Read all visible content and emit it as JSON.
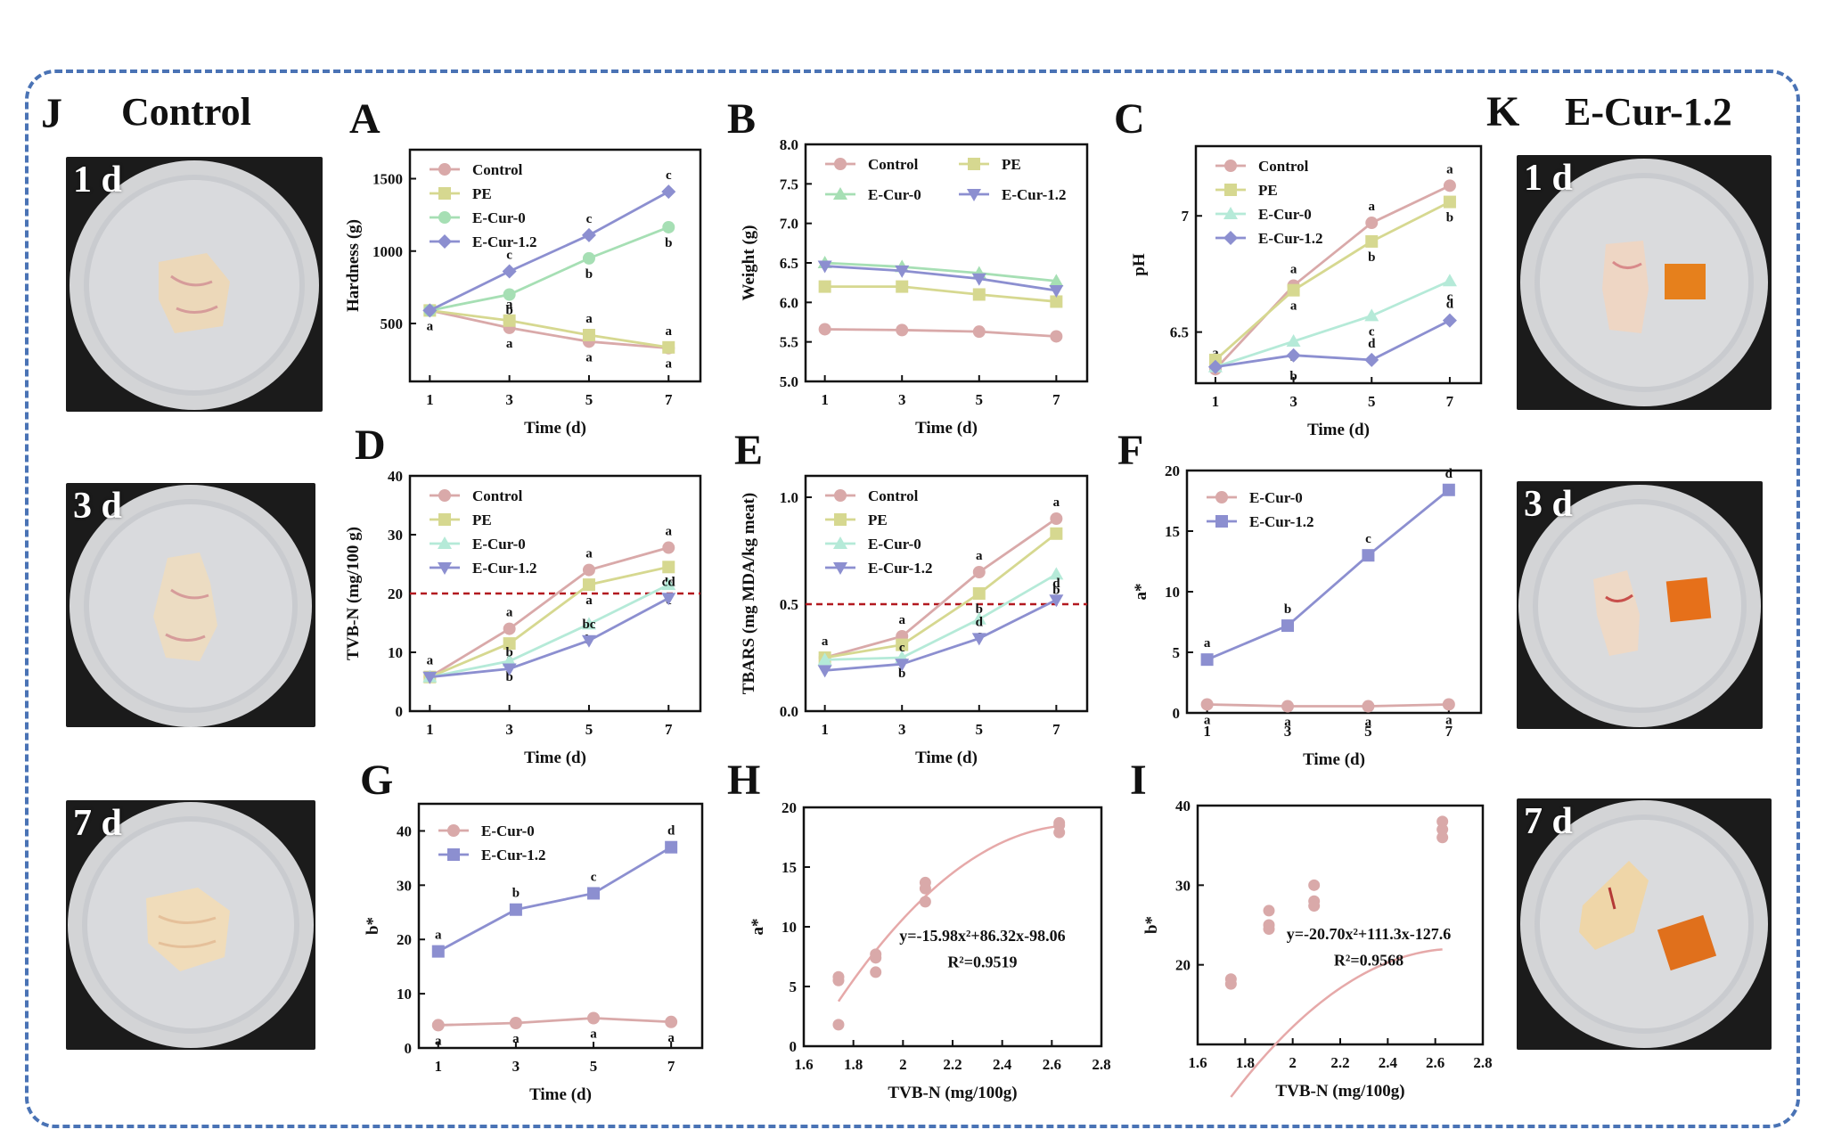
{
  "panels": {
    "J": "J",
    "K": "K",
    "A": "A",
    "B": "B",
    "C": "C",
    "D": "D",
    "E": "E",
    "F": "F",
    "G": "G",
    "H": "H",
    "I": "I"
  },
  "left_title": "Control",
  "right_title": "E-Cur-1.2",
  "photos": {
    "left": [
      "1 d",
      "3 d",
      "7 d"
    ],
    "right": [
      "1 d",
      "3 d",
      "7 d"
    ]
  },
  "colors": {
    "Control": "#d9a9a9",
    "PE": "#d6d890",
    "E-Cur-0": "#a6dfb4",
    "E-Cur-1.2": "#8c8fd0",
    "E-Cur-0-C": "#b5ead8",
    "frame": "#4a73b5",
    "threshold": "#b3191f",
    "fit": "#e6a9a9"
  },
  "chart_data": [
    {
      "id": "A",
      "type": "line",
      "xlabel": "Time (d)",
      "ylabel": "Hardness (g)",
      "xlim": [
        0.5,
        7.8
      ],
      "ylim": [
        100,
        1700
      ],
      "xticks": [
        1,
        3,
        5,
        7
      ],
      "yticks": [
        500,
        1000,
        1500
      ],
      "legend": "top-left",
      "marker_styles": [
        "circle",
        "square",
        "circle",
        "diamond"
      ],
      "series": [
        {
          "name": "Control",
          "color": "#d9a9a9",
          "x": [
            1,
            3,
            5,
            7
          ],
          "y": [
            590,
            470,
            375,
            330
          ],
          "labels": [
            "a",
            "a",
            "a",
            "a"
          ]
        },
        {
          "name": "PE",
          "color": "#d6d890",
          "x": [
            1,
            3,
            5,
            7
          ],
          "y": [
            590,
            520,
            420,
            335
          ],
          "labels": [
            "",
            "a",
            "a",
            "a"
          ]
        },
        {
          "name": "E-Cur-0",
          "color": "#a6dfb4",
          "x": [
            1,
            3,
            5,
            7
          ],
          "y": [
            590,
            700,
            950,
            1165
          ],
          "labels": [
            "",
            "b",
            "b",
            "b"
          ]
        },
        {
          "name": "E-Cur-1.2",
          "color": "#8c8fd0",
          "x": [
            1,
            3,
            5,
            7
          ],
          "y": [
            590,
            860,
            1110,
            1410
          ],
          "labels": [
            "",
            "c",
            "c",
            "c"
          ]
        }
      ]
    },
    {
      "id": "B",
      "type": "line",
      "xlabel": "Time (d)",
      "ylabel": "Weight (g)",
      "xlim": [
        0.5,
        7.8
      ],
      "ylim": [
        5.0,
        8.0
      ],
      "xticks": [
        1,
        3,
        5,
        7
      ],
      "yticks": [
        5.0,
        5.5,
        6.0,
        6.5,
        7.0,
        7.5,
        8.0
      ],
      "legend": "top",
      "series": [
        {
          "name": "Control",
          "color": "#d9a9a9",
          "x": [
            1,
            3,
            5,
            7
          ],
          "y": [
            5.66,
            5.65,
            5.63,
            5.57
          ]
        },
        {
          "name": "PE",
          "color": "#d6d890",
          "x": [
            1,
            3,
            5,
            7
          ],
          "y": [
            6.2,
            6.2,
            6.1,
            6.01
          ]
        },
        {
          "name": "E-Cur-0",
          "color": "#a6dfb4",
          "x": [
            1,
            3,
            5,
            7
          ],
          "y": [
            6.5,
            6.45,
            6.37,
            6.27
          ]
        },
        {
          "name": "E-Cur-1.2",
          "color": "#8c8fd0",
          "x": [
            1,
            3,
            5,
            7
          ],
          "y": [
            6.46,
            6.4,
            6.3,
            6.15
          ]
        }
      ]
    },
    {
      "id": "C",
      "type": "line",
      "xlabel": "Time (d)",
      "ylabel": "pH",
      "xlim": [
        0.5,
        7.8
      ],
      "ylim": [
        6.28,
        7.3
      ],
      "xticks": [
        1,
        3,
        5,
        7
      ],
      "yticks": [
        6.5,
        7.0
      ],
      "legend": "top-left",
      "series": [
        {
          "name": "Control",
          "color": "#d9a9a9",
          "x": [
            1,
            3,
            5,
            7
          ],
          "y": [
            6.34,
            6.7,
            6.97,
            7.13
          ],
          "labels": [
            "a",
            "a",
            "a",
            "a"
          ]
        },
        {
          "name": "PE",
          "color": "#d6d890",
          "x": [
            1,
            3,
            5,
            7
          ],
          "y": [
            6.38,
            6.68,
            6.89,
            7.06
          ],
          "labels": [
            "",
            "a",
            "b",
            "b"
          ]
        },
        {
          "name": "E-Cur-0",
          "color": "#b5ead8",
          "x": [
            1,
            3,
            5,
            7
          ],
          "y": [
            6.35,
            6.46,
            6.57,
            6.72
          ],
          "labels": [
            "",
            "b",
            "c",
            "c"
          ]
        },
        {
          "name": "E-Cur-1.2",
          "color": "#8c8fd0",
          "x": [
            1,
            3,
            5,
            7
          ],
          "y": [
            6.35,
            6.4,
            6.38,
            6.55
          ],
          "labels": [
            "",
            "b",
            "d",
            "d"
          ]
        }
      ]
    },
    {
      "id": "D",
      "type": "line",
      "xlabel": "Time (d)",
      "ylabel": "TVB-N (mg/100 g)",
      "xlim": [
        0.5,
        7.8
      ],
      "ylim": [
        0,
        40
      ],
      "xticks": [
        1,
        3,
        5,
        7
      ],
      "yticks": [
        0,
        10,
        20,
        30,
        40
      ],
      "threshold": 20,
      "legend": "top-left",
      "series": [
        {
          "name": "Control",
          "color": "#d9a9a9",
          "x": [
            1,
            3,
            5,
            7
          ],
          "y": [
            5.8,
            14,
            24,
            27.8
          ],
          "labels": [
            "a",
            "a",
            "a",
            "a"
          ]
        },
        {
          "name": "PE",
          "color": "#d6d890",
          "x": [
            1,
            3,
            5,
            7
          ],
          "y": [
            5.8,
            11.5,
            21.5,
            24.5
          ],
          "labels": [
            "",
            "a",
            "a",
            "b"
          ]
        },
        {
          "name": "E-Cur-0",
          "color": "#b5ead8",
          "x": [
            1,
            3,
            5,
            7
          ],
          "y": [
            5.8,
            8.5,
            14.8,
            21.5
          ],
          "labels": [
            "",
            "b",
            "b",
            "c"
          ]
        },
        {
          "name": "E-Cur-1.2",
          "color": "#8c8fd0",
          "x": [
            1,
            3,
            5,
            7
          ],
          "y": [
            5.8,
            7.2,
            12,
            19.2
          ],
          "labels": [
            "",
            "b",
            "bc",
            "cd"
          ]
        }
      ]
    },
    {
      "id": "E",
      "type": "line",
      "xlabel": "Time (d)",
      "ylabel": "TBARS (mg MDA/kg meat)",
      "xlim": [
        0.5,
        7.8
      ],
      "ylim": [
        0,
        1.1
      ],
      "xticks": [
        1,
        3,
        5,
        7
      ],
      "yticks": [
        0.0,
        0.5,
        1.0
      ],
      "threshold": 0.5,
      "legend": "top-left",
      "series": [
        {
          "name": "Control",
          "color": "#d9a9a9",
          "x": [
            1,
            3,
            5,
            7
          ],
          "y": [
            0.25,
            0.35,
            0.65,
            0.9
          ],
          "labels": [
            "a",
            "a",
            "a",
            "a"
          ]
        },
        {
          "name": "PE",
          "color": "#d6d890",
          "x": [
            1,
            3,
            5,
            7
          ],
          "y": [
            0.25,
            0.31,
            0.55,
            0.83
          ],
          "labels": [
            "",
            "a",
            "b",
            ""
          ]
        },
        {
          "name": "E-Cur-0",
          "color": "#b5ead8",
          "x": [
            1,
            3,
            5,
            7
          ],
          "y": [
            0.24,
            0.25,
            0.43,
            0.64
          ],
          "labels": [
            "",
            "b",
            "c",
            "b"
          ]
        },
        {
          "name": "E-Cur-1.2",
          "color": "#8c8fd0",
          "x": [
            1,
            3,
            5,
            7
          ],
          "y": [
            0.19,
            0.22,
            0.34,
            0.52
          ],
          "labels": [
            "",
            "c",
            "d",
            "d"
          ]
        }
      ]
    },
    {
      "id": "F",
      "type": "line",
      "xlabel": "Time (d)",
      "ylabel": "a*",
      "xlim": [
        0.5,
        7.8
      ],
      "ylim": [
        0,
        20
      ],
      "xticks": [
        1,
        3,
        5,
        7
      ],
      "yticks": [
        0,
        5,
        10,
        15,
        20
      ],
      "legend": "top-left",
      "series": [
        {
          "name": "E-Cur-0",
          "color": "#d9a9a9",
          "x": [
            1,
            3,
            5,
            7
          ],
          "y": [
            0.7,
            0.55,
            0.55,
            0.7
          ],
          "labels": [
            "a",
            "a",
            "a",
            "a"
          ]
        },
        {
          "name": "E-Cur-1.2",
          "color": "#8c8fd0",
          "x": [
            1,
            3,
            5,
            7
          ],
          "y": [
            4.4,
            7.2,
            13,
            18.4
          ],
          "labels": [
            "a",
            "b",
            "c",
            "d"
          ]
        }
      ]
    },
    {
      "id": "G",
      "type": "line",
      "xlabel": "Time (d)",
      "ylabel": "b*",
      "xlim": [
        0.5,
        7.8
      ],
      "ylim": [
        0,
        45
      ],
      "xticks": [
        1,
        3,
        5,
        7
      ],
      "yticks": [
        0,
        10,
        20,
        30,
        40
      ],
      "legend": "top-left",
      "series": [
        {
          "name": "E-Cur-0",
          "color": "#d9a9a9",
          "x": [
            1,
            3,
            5,
            7
          ],
          "y": [
            4.2,
            4.6,
            5.5,
            4.8
          ],
          "labels": [
            "a",
            "a",
            "a",
            "a"
          ]
        },
        {
          "name": "E-Cur-1.2",
          "color": "#8c8fd0",
          "x": [
            1,
            3,
            5,
            7
          ],
          "y": [
            17.8,
            25.5,
            28.5,
            37
          ],
          "labels": [
            "a",
            "b",
            "c",
            "d"
          ]
        }
      ]
    },
    {
      "id": "H",
      "type": "scatter",
      "xlabel": "TVB-N (mg/100g)",
      "ylabel": "a*",
      "xlim": [
        1.6,
        2.8
      ],
      "ylim": [
        0,
        20
      ],
      "xticks": [
        1.6,
        1.8,
        2.0,
        2.2,
        2.4,
        2.6,
        2.8
      ],
      "yticks": [
        0,
        5,
        10,
        15,
        20
      ],
      "points": [
        [
          1.74,
          5.8
        ],
        [
          1.74,
          5.5
        ],
        [
          1.74,
          1.8
        ],
        [
          1.89,
          7.7
        ],
        [
          1.89,
          7.4
        ],
        [
          1.89,
          6.2
        ],
        [
          2.09,
          13.7
        ],
        [
          2.09,
          13.2
        ],
        [
          2.09,
          12.1
        ],
        [
          2.63,
          18.7
        ],
        [
          2.63,
          18.5
        ],
        [
          2.63,
          17.9
        ]
      ],
      "fit": {
        "a": -15.98,
        "b": 86.32,
        "c": -98.06,
        "range": [
          1.74,
          2.63
        ]
      },
      "equation": "y=-15.98x²+86.32x-98.06",
      "r2": "R²=0.9519"
    },
    {
      "id": "I",
      "type": "scatter",
      "xlabel": "TVB-N (mg/100g)",
      "ylabel": "b*",
      "xlim": [
        1.6,
        2.8
      ],
      "ylim": [
        10,
        40
      ],
      "xticks": [
        1.6,
        1.8,
        2.0,
        2.2,
        2.4,
        2.6,
        2.8
      ],
      "yticks": [
        20,
        30,
        40
      ],
      "points": [
        [
          1.74,
          18.2
        ],
        [
          1.74,
          17.6
        ],
        [
          1.9,
          26.8
        ],
        [
          1.9,
          25
        ],
        [
          1.9,
          24.5
        ],
        [
          2.09,
          30
        ],
        [
          2.09,
          28
        ],
        [
          2.09,
          27.4
        ],
        [
          2.63,
          38
        ],
        [
          2.63,
          37
        ],
        [
          2.63,
          36
        ]
      ],
      "fit": {
        "a": -20.7,
        "b": 111.3,
        "c": -127.6,
        "range": [
          1.74,
          2.63
        ]
      },
      "equation": "y=-20.70x²+111.3x-127.6",
      "r2": "R²=0.9568"
    }
  ]
}
